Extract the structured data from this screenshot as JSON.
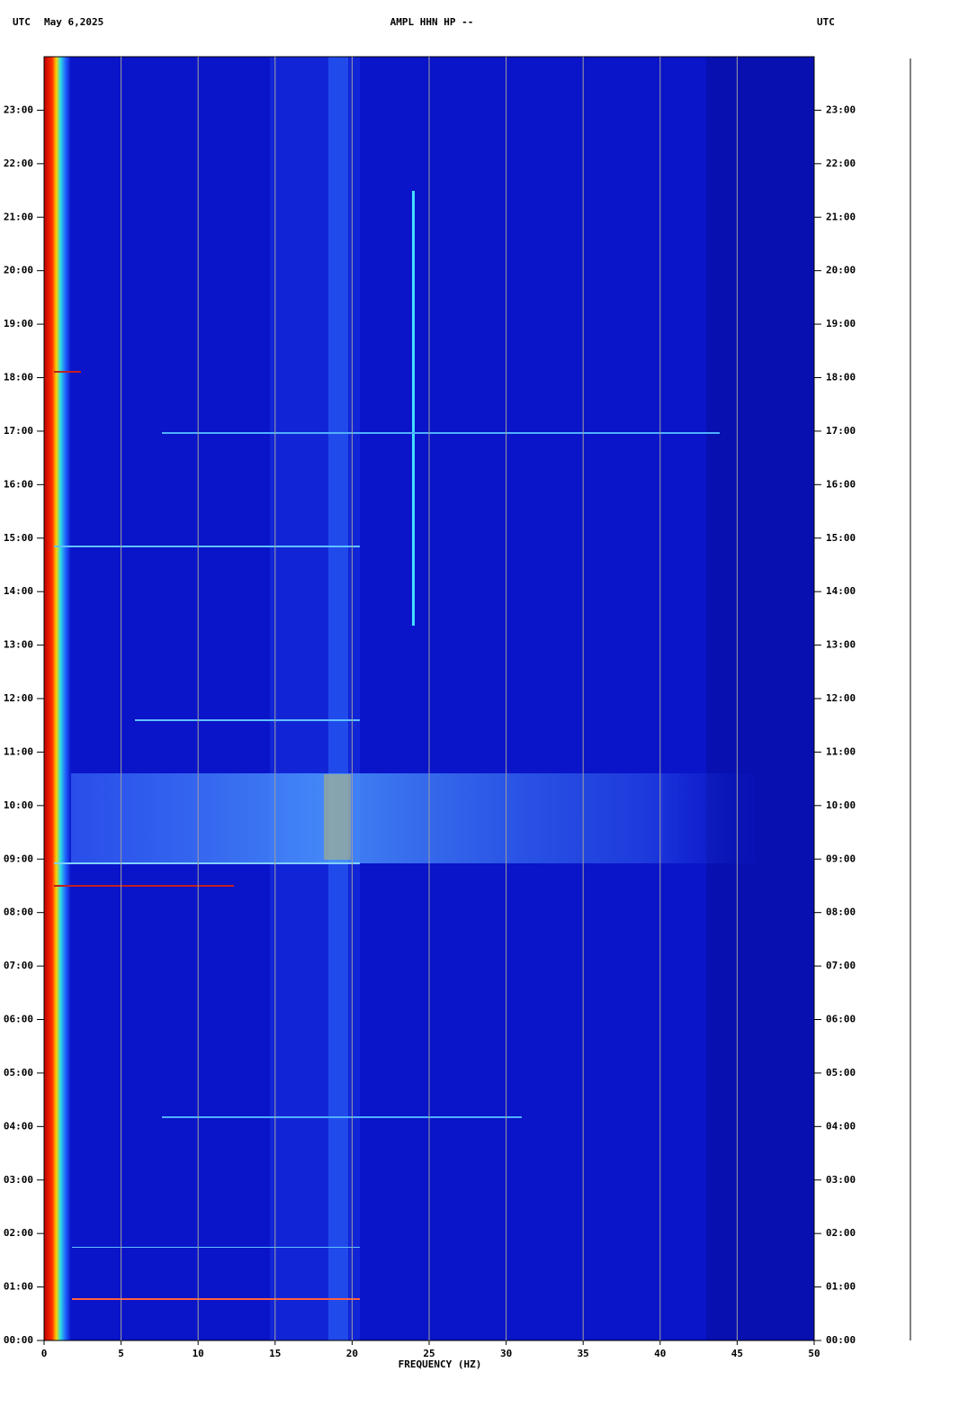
{
  "chart_data": {
    "type": "spectrogram",
    "title": "AMPL HHN HP --",
    "timezone_left": "UTC",
    "date": "May 6,2025",
    "timezone_right": "UTC",
    "xlabel": "FREQUENCY (HZ)",
    "xlim": [
      0,
      50
    ],
    "xticks": [
      0,
      5,
      10,
      15,
      20,
      25,
      30,
      35,
      40,
      45,
      50
    ],
    "ylim": [
      0,
      24
    ],
    "yticks": [
      {
        "value": 0,
        "label": "00:00"
      },
      {
        "value": 1,
        "label": "01:00"
      },
      {
        "value": 2,
        "label": "02:00"
      },
      {
        "value": 3,
        "label": "03:00"
      },
      {
        "value": 4,
        "label": "04:00"
      },
      {
        "value": 5,
        "label": "05:00"
      },
      {
        "value": 6,
        "label": "06:00"
      },
      {
        "value": 7,
        "label": "07:00"
      },
      {
        "value": 8,
        "label": "08:00"
      },
      {
        "value": 9,
        "label": "09:00"
      },
      {
        "value": 10,
        "label": "10:00"
      },
      {
        "value": 11,
        "label": "11:00"
      },
      {
        "value": 12,
        "label": "12:00"
      },
      {
        "value": 13,
        "label": "13:00"
      },
      {
        "value": 14,
        "label": "14:00"
      },
      {
        "value": 15,
        "label": "15:00"
      },
      {
        "value": 16,
        "label": "16:00"
      },
      {
        "value": 17,
        "label": "17:00"
      },
      {
        "value": 18,
        "label": "18:00"
      },
      {
        "value": 19,
        "label": "19:00"
      },
      {
        "value": 20,
        "label": "20:00"
      },
      {
        "value": 21,
        "label": "21:00"
      },
      {
        "value": 22,
        "label": "22:00"
      },
      {
        "value": 23,
        "label": "23:00"
      }
    ],
    "grid": true,
    "grid_color": "#a0a0a0"
  }
}
